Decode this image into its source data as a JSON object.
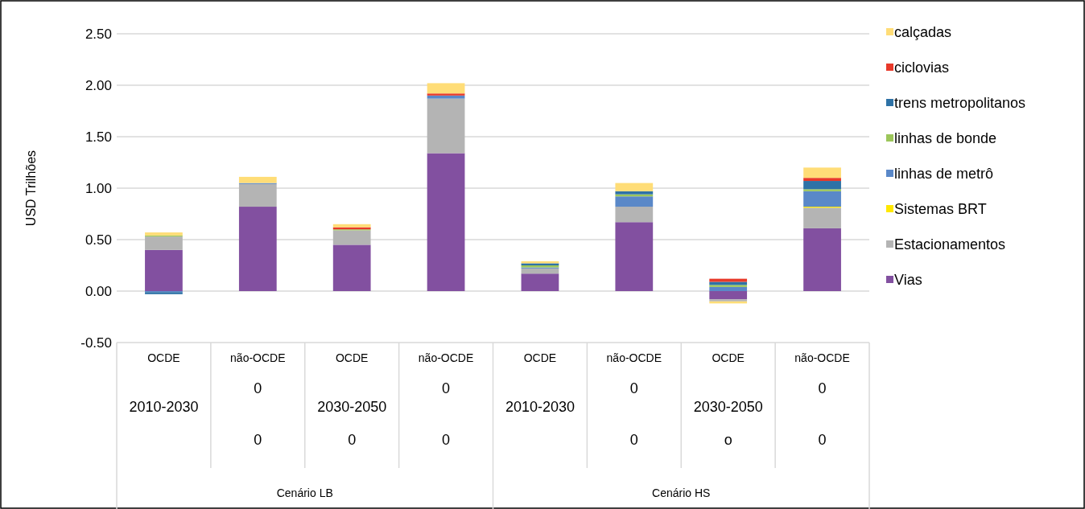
{
  "chart_data": {
    "type": "bar",
    "stacked": true,
    "ylabel": "USD Trilhões",
    "categories": [
      "OCDE",
      "não-OCDE",
      "OCDE",
      "não-OCDE",
      "OCDE",
      "não-OCDE",
      "OCDE",
      "não-OCDE"
    ],
    "series": [
      {
        "name": "Vias",
        "color": "#8250a0",
        "values": [
          0.4,
          0.82,
          0.45,
          1.34,
          0.17,
          0.67,
          -0.08,
          0.61
        ]
      },
      {
        "name": "Estacionamentos",
        "color": "#b4b4b4",
        "values": [
          0.13,
          0.22,
          0.14,
          0.53,
          0.05,
          0.15,
          -0.02,
          0.2
        ]
      },
      {
        "name": "Sistemas BRT",
        "color": "#ffe800",
        "values": [
          0,
          0,
          0,
          0,
          0,
          0,
          0,
          0.01
        ]
      },
      {
        "name": "linhas de metrô",
        "color": "#5a88c8",
        "values": [
          -0.01,
          0.01,
          0,
          0.03,
          0.01,
          0.1,
          0.04,
          0.15
        ]
      },
      {
        "name": "linhas de bonde",
        "color": "#9cc65a",
        "values": [
          0.01,
          0,
          0.01,
          0,
          0.02,
          0.02,
          0.02,
          0.02
        ]
      },
      {
        "name": "trens metropolitanos",
        "color": "#2e72a6",
        "values": [
          -0.02,
          0,
          0,
          0,
          0.02,
          0.03,
          0.03,
          0.08
        ]
      },
      {
        "name": "ciclovias",
        "color": "#e8392a",
        "values": [
          0,
          0,
          0.02,
          0.02,
          0,
          0,
          0.03,
          0.03
        ]
      },
      {
        "name": "calçadas",
        "color": "#ffdd77",
        "values": [
          0.03,
          0.06,
          0.03,
          0.1,
          0.02,
          0.08,
          -0.02,
          0.1
        ]
      }
    ],
    "ylim": [
      -0.5,
      2.5
    ],
    "yticks": [
      {
        "value": -0.5,
        "label": "-0.50"
      },
      {
        "value": 0,
        "label": "0.00"
      },
      {
        "value": 0.5,
        "label": "0.50"
      },
      {
        "value": 1,
        "label": "1.00"
      },
      {
        "value": 1.5,
        "label": "1.50"
      },
      {
        "value": 2,
        "label": "2.00"
      },
      {
        "value": 2.5,
        "label": "2.50"
      }
    ],
    "grid": "y",
    "legend": "right",
    "annotations": [
      "2010-2030",
      "0",
      "2030-2050",
      "0",
      "2010-2030",
      "0",
      "2030-2050",
      "0",
      "0",
      "0",
      "0",
      "0",
      "o",
      "0",
      "Cenário LB",
      "Cenário HS"
    ]
  }
}
